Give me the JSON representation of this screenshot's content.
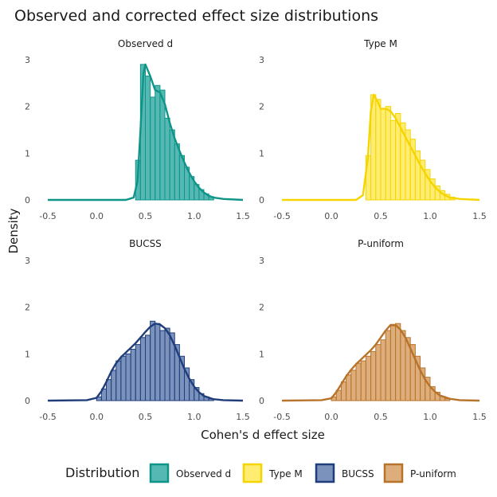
{
  "chart_data": {
    "type": "histogram-density-facet",
    "title": "Observed and corrected effect size distributions",
    "xlabel": "Cohen's d effect size",
    "ylabel": "Density",
    "xlim": [
      -0.5,
      1.5
    ],
    "ylim": [
      0,
      3
    ],
    "xticks": [
      "-0.5",
      "0.0",
      "0.5",
      "1.0",
      "1.5"
    ],
    "yticks": [
      "0",
      "1",
      "2",
      "3"
    ],
    "bin_width": 0.05,
    "legend": {
      "title": "Distribution",
      "position": "bottom"
    },
    "panels": [
      {
        "name": "Observed d",
        "fill": "#2aa6a0",
        "stroke": "#0f9488",
        "bin_start": 0.4,
        "bar_values": [
          0.85,
          2.9,
          2.65,
          2.2,
          2.45,
          2.35,
          1.75,
          1.5,
          1.2,
          0.95,
          0.7,
          0.5,
          0.33,
          0.22,
          0.13,
          0.07
        ],
        "curve": [
          [
            -0.5,
            0
          ],
          [
            0.3,
            0
          ],
          [
            0.38,
            0.05
          ],
          [
            0.42,
            0.4
          ],
          [
            0.45,
            1.5
          ],
          [
            0.48,
            2.7
          ],
          [
            0.5,
            2.9
          ],
          [
            0.55,
            2.65
          ],
          [
            0.6,
            2.35
          ],
          [
            0.65,
            2.3
          ],
          [
            0.7,
            2.05
          ],
          [
            0.75,
            1.65
          ],
          [
            0.8,
            1.32
          ],
          [
            0.85,
            1.05
          ],
          [
            0.9,
            0.8
          ],
          [
            0.95,
            0.58
          ],
          [
            1.0,
            0.4
          ],
          [
            1.05,
            0.26
          ],
          [
            1.1,
            0.16
          ],
          [
            1.15,
            0.09
          ],
          [
            1.2,
            0.05
          ],
          [
            1.3,
            0.02
          ],
          [
            1.5,
            0
          ]
        ]
      },
      {
        "name": "Type M",
        "fill": "#fee94e",
        "stroke": "#f5d400",
        "bin_start": 0.35,
        "bar_values": [
          0.95,
          2.25,
          2.15,
          1.95,
          2.0,
          1.7,
          1.85,
          1.65,
          1.5,
          1.3,
          1.05,
          0.85,
          0.65,
          0.45,
          0.3,
          0.2,
          0.12,
          0.06
        ],
        "curve": [
          [
            -0.5,
            0
          ],
          [
            0.25,
            0
          ],
          [
            0.32,
            0.1
          ],
          [
            0.37,
            0.9
          ],
          [
            0.4,
            1.9
          ],
          [
            0.43,
            2.25
          ],
          [
            0.47,
            2.1
          ],
          [
            0.5,
            1.95
          ],
          [
            0.55,
            1.95
          ],
          [
            0.6,
            1.9
          ],
          [
            0.65,
            1.75
          ],
          [
            0.7,
            1.55
          ],
          [
            0.75,
            1.35
          ],
          [
            0.8,
            1.15
          ],
          [
            0.85,
            0.95
          ],
          [
            0.9,
            0.75
          ],
          [
            0.95,
            0.57
          ],
          [
            1.0,
            0.4
          ],
          [
            1.05,
            0.27
          ],
          [
            1.1,
            0.17
          ],
          [
            1.15,
            0.1
          ],
          [
            1.2,
            0.05
          ],
          [
            1.3,
            0.02
          ],
          [
            1.5,
            0
          ]
        ]
      },
      {
        "name": "BUCSS",
        "fill": "#5a77ab",
        "stroke": "#1f3d7a",
        "bin_start": 0.0,
        "bar_values": [
          0.08,
          0.25,
          0.45,
          0.65,
          0.85,
          0.95,
          1.0,
          1.1,
          1.2,
          1.35,
          1.4,
          1.7,
          1.65,
          1.5,
          1.55,
          1.45,
          1.2,
          0.95,
          0.7,
          0.45,
          0.28,
          0.15,
          0.08,
          0.04
        ],
        "curve": [
          [
            -0.5,
            0
          ],
          [
            -0.1,
            0.01
          ],
          [
            0.0,
            0.06
          ],
          [
            0.05,
            0.2
          ],
          [
            0.1,
            0.4
          ],
          [
            0.15,
            0.62
          ],
          [
            0.2,
            0.8
          ],
          [
            0.25,
            0.93
          ],
          [
            0.3,
            1.03
          ],
          [
            0.35,
            1.13
          ],
          [
            0.4,
            1.23
          ],
          [
            0.45,
            1.35
          ],
          [
            0.5,
            1.47
          ],
          [
            0.55,
            1.58
          ],
          [
            0.6,
            1.65
          ],
          [
            0.65,
            1.63
          ],
          [
            0.7,
            1.55
          ],
          [
            0.75,
            1.4
          ],
          [
            0.8,
            1.18
          ],
          [
            0.85,
            0.93
          ],
          [
            0.9,
            0.68
          ],
          [
            0.95,
            0.47
          ],
          [
            1.0,
            0.3
          ],
          [
            1.05,
            0.18
          ],
          [
            1.1,
            0.1
          ],
          [
            1.2,
            0.03
          ],
          [
            1.3,
            0.01
          ],
          [
            1.5,
            0
          ]
        ]
      },
      {
        "name": "P-uniform",
        "fill": "#d49a5a",
        "stroke": "#b8732a",
        "bin_start": 0.0,
        "bar_values": [
          0.08,
          0.22,
          0.4,
          0.55,
          0.65,
          0.8,
          0.85,
          0.95,
          1.05,
          1.2,
          1.3,
          1.5,
          1.6,
          1.65,
          1.5,
          1.35,
          1.2,
          0.95,
          0.7,
          0.5,
          0.3,
          0.18,
          0.09,
          0.04
        ],
        "curve": [
          [
            -0.5,
            0
          ],
          [
            -0.1,
            0.01
          ],
          [
            0.0,
            0.05
          ],
          [
            0.05,
            0.18
          ],
          [
            0.1,
            0.35
          ],
          [
            0.15,
            0.52
          ],
          [
            0.2,
            0.66
          ],
          [
            0.25,
            0.78
          ],
          [
            0.3,
            0.88
          ],
          [
            0.35,
            0.98
          ],
          [
            0.4,
            1.08
          ],
          [
            0.45,
            1.2
          ],
          [
            0.5,
            1.35
          ],
          [
            0.55,
            1.5
          ],
          [
            0.6,
            1.62
          ],
          [
            0.65,
            1.62
          ],
          [
            0.7,
            1.52
          ],
          [
            0.75,
            1.35
          ],
          [
            0.8,
            1.12
          ],
          [
            0.85,
            0.88
          ],
          [
            0.9,
            0.65
          ],
          [
            0.95,
            0.45
          ],
          [
            1.0,
            0.3
          ],
          [
            1.05,
            0.19
          ],
          [
            1.1,
            0.11
          ],
          [
            1.2,
            0.04
          ],
          [
            1.3,
            0.01
          ],
          [
            1.5,
            0
          ]
        ]
      }
    ]
  }
}
